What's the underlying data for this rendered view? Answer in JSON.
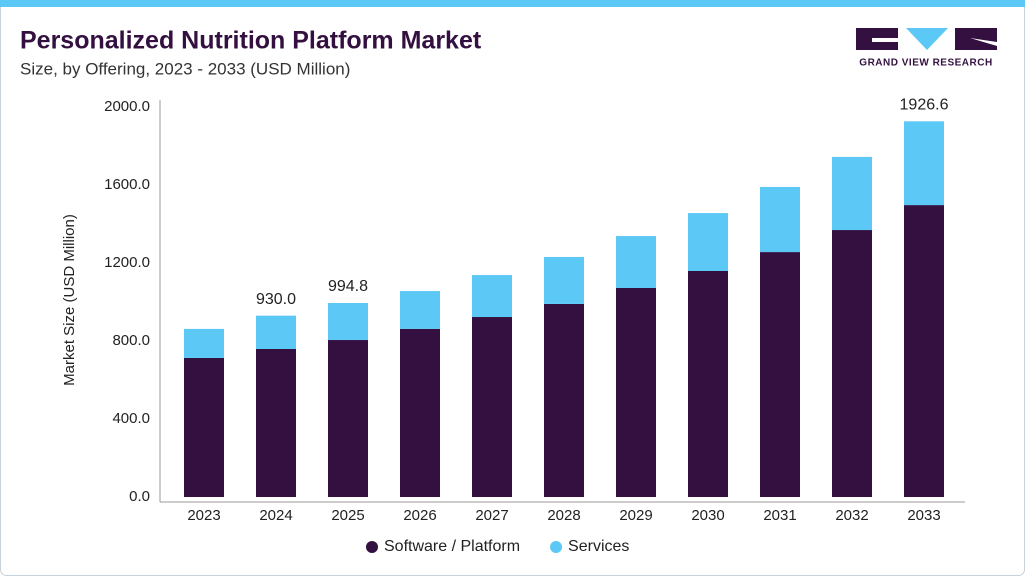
{
  "brand": "GRAND VIEW RESEARCH",
  "chart_data": {
    "type": "stacked_bar",
    "title": "Personalized Nutrition Platform Market",
    "subtitle": "Size, by Offering, 2023 - 2033 (USD Million)",
    "y_label": "Market Size (USD Million)",
    "categories": [
      "2023",
      "2024",
      "2025",
      "2026",
      "2027",
      "2028",
      "2029",
      "2030",
      "2031",
      "2032",
      "2033"
    ],
    "series": [
      {
        "name": "Software / Platform",
        "color": "#33103f",
        "values": [
          713,
          759,
          805,
          862,
          923,
          990,
          1072,
          1159,
          1256,
          1369,
          1497
        ]
      },
      {
        "name": "Services",
        "color": "#5bc8f5",
        "values": [
          149,
          171,
          189.8,
          194,
          215,
          241,
          266,
          297,
          334,
          375,
          429.6
        ]
      }
    ],
    "annotations": [
      {
        "x": "2024",
        "text": "930.0"
      },
      {
        "x": "2025",
        "text": "994.8"
      },
      {
        "x": "2033",
        "text": "1926.6"
      }
    ],
    "ylim": [
      0,
      2000
    ],
    "yticks": [
      {
        "value": 0,
        "label": "0.0"
      },
      {
        "value": 400,
        "label": "400.0"
      },
      {
        "value": 800,
        "label": "800.0"
      },
      {
        "value": 1200,
        "label": "1200.0"
      },
      {
        "value": 1600,
        "label": "1600.0"
      },
      {
        "value": 2000,
        "label": "2000.0"
      }
    ],
    "grid": false,
    "legend": "bottom"
  }
}
